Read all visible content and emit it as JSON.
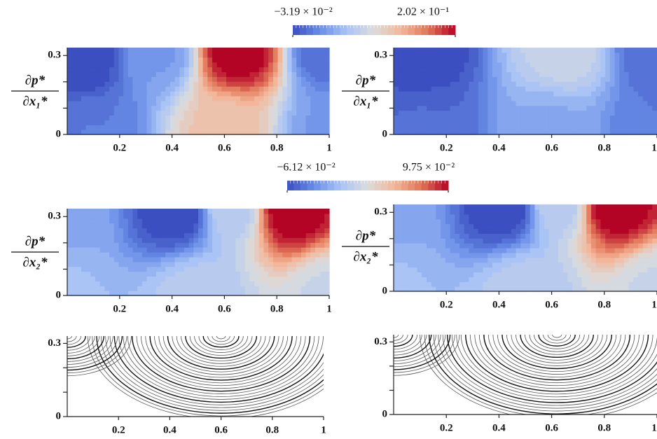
{
  "colorbars": [
    {
      "ticks": [
        {
          "value": -0.0319,
          "label": "−3.19 × 10⁻²"
        },
        {
          "value": 0.202,
          "label": "2.02 × 10⁻¹"
        }
      ],
      "colormap": [
        "#3b4fc0",
        "#6a8ee8",
        "#a9c4f5",
        "#dcdcdc",
        "#f2b79a",
        "#e07557",
        "#b40426"
      ]
    },
    {
      "ticks": [
        {
          "value": -0.0612,
          "label": "−6.12 × 10⁻²"
        },
        {
          "value": 0.0975,
          "label": "9.75 × 10⁻²"
        }
      ],
      "colormap": [
        "#3b4fc0",
        "#6a8ee8",
        "#a9c4f5",
        "#dcdcdc",
        "#f2b79a",
        "#e07557",
        "#b40426"
      ]
    }
  ],
  "chart_data": [
    {
      "type": "contour",
      "ylabel": {
        "numerator": "∂p*",
        "denominator": "∂x₁*"
      },
      "xlim": [
        0,
        1
      ],
      "ylim": [
        0,
        0.33
      ],
      "xticks": [
        0.2,
        0.4,
        0.6,
        0.8,
        1
      ],
      "yticks": [
        0,
        0.3
      ],
      "minor_yticks": [
        0.1,
        0.2
      ],
      "features": [
        {
          "x": 0.65,
          "y": 0.33,
          "value": 0.202
        },
        {
          "x": 0.05,
          "y": 0.3,
          "value": -0.0319
        },
        {
          "x": 0.6,
          "y": 0,
          "value": 0.11
        },
        {
          "x": 1,
          "y": 0.33,
          "value": -0.01
        },
        {
          "x": 0.1,
          "y": 0,
          "value": 0.0
        },
        {
          "x": 1,
          "y": 0,
          "value": 0.02
        },
        {
          "x": 0.35,
          "y": 0.33,
          "value": 0.02
        }
      ]
    },
    {
      "type": "contour",
      "ylabel": {
        "numerator": "∂p*",
        "denominator": "∂x₁*"
      },
      "xlim": [
        0,
        1
      ],
      "ylim": [
        0,
        0.33
      ],
      "xticks": [
        0.2,
        0.4,
        0.6,
        0.8,
        1
      ],
      "yticks": [
        0,
        0.3
      ],
      "minor_yticks": [
        0.1,
        0.2
      ],
      "features": [
        {
          "x": 0.65,
          "y": 0.33,
          "value": 0.07
        },
        {
          "x": 0.1,
          "y": 0.33,
          "value": -0.03
        },
        {
          "x": 0.6,
          "y": 0,
          "value": 0.03
        },
        {
          "x": 1,
          "y": 0.33,
          "value": -0.01
        },
        {
          "x": 0.1,
          "y": 0,
          "value": -0.01
        },
        {
          "x": 1,
          "y": 0,
          "value": 0.0
        }
      ]
    },
    {
      "type": "contour",
      "ylabel": {
        "numerator": "∂p*",
        "denominator": "∂x₂*"
      },
      "xlim": [
        0,
        1
      ],
      "ylim": [
        0,
        0.33
      ],
      "xticks": [
        0.2,
        0.4,
        0.6,
        0.8,
        1
      ],
      "yticks": [
        0,
        0.3
      ],
      "minor_yticks": [
        0.1,
        0.2
      ],
      "features": [
        {
          "x": 0.42,
          "y": 0.33,
          "value": -0.0612
        },
        {
          "x": 0.85,
          "y": 0.33,
          "value": 0.0975
        },
        {
          "x": 0.5,
          "y": 0,
          "value": 0.0
        },
        {
          "x": 0,
          "y": 0.33,
          "value": -0.02
        },
        {
          "x": 0,
          "y": 0,
          "value": -0.01
        },
        {
          "x": 1,
          "y": 0,
          "value": 0.01
        },
        {
          "x": 0.63,
          "y": 0.33,
          "value": 0.0
        }
      ]
    },
    {
      "type": "contour",
      "ylabel": {
        "numerator": "∂p*",
        "denominator": "∂x₂*"
      },
      "xlim": [
        0,
        1
      ],
      "ylim": [
        0,
        0.33
      ],
      "xticks": [
        0.2,
        0.4,
        0.6,
        0.8,
        1
      ],
      "yticks": [
        0,
        0.3
      ],
      "minor_yticks": [
        0.1,
        0.2
      ],
      "features": [
        {
          "x": 0.42,
          "y": 0.33,
          "value": -0.0612
        },
        {
          "x": 0.83,
          "y": 0.33,
          "value": 0.0975
        },
        {
          "x": 0.5,
          "y": 0,
          "value": 0.0
        },
        {
          "x": 0,
          "y": 0.33,
          "value": -0.02
        },
        {
          "x": 0,
          "y": 0,
          "value": -0.01
        },
        {
          "x": 1,
          "y": 0,
          "value": 0.01
        },
        {
          "x": 0.63,
          "y": 0.33,
          "value": 0.0
        }
      ]
    },
    {
      "type": "streamlines",
      "xlim": [
        0,
        1
      ],
      "ylim": [
        0,
        0.33
      ],
      "xticks": [
        0.2,
        0.4,
        0.6,
        0.8,
        1
      ],
      "yticks": [
        0,
        0.3
      ],
      "minor_yticks": [
        0.1,
        0.2
      ],
      "centers": [
        {
          "x": 0.6,
          "y": 0.33
        },
        {
          "x": 0,
          "y": 0.33
        }
      ]
    },
    {
      "type": "streamlines",
      "xlim": [
        0,
        1
      ],
      "ylim": [
        0,
        0.33
      ],
      "xticks": [
        0.2,
        0.4,
        0.6,
        0.8,
        1
      ],
      "yticks": [
        0,
        0.3
      ],
      "minor_yticks": [
        0.1,
        0.2
      ],
      "centers": [
        {
          "x": 0.62,
          "y": 0.33
        },
        {
          "x": 0,
          "y": 0.33
        }
      ]
    }
  ]
}
